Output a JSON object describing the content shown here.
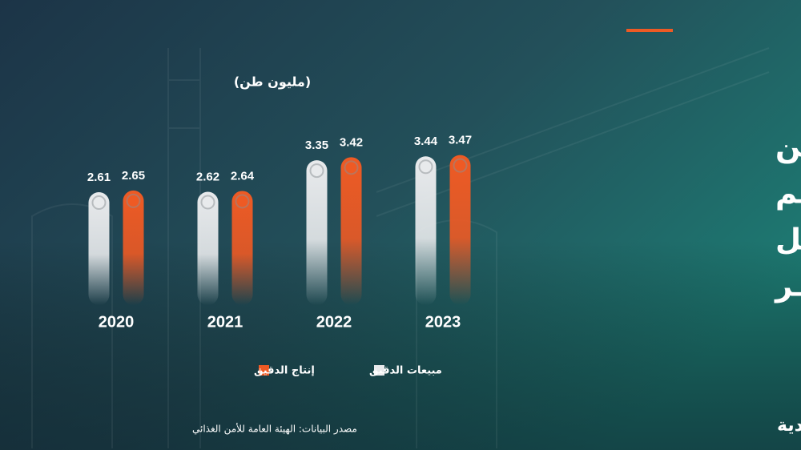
{
  "chart_data": {
    "type": "bar",
    "title": [
      "شركـــات المطاحن",
      "السعودية تبيع معظم",
      "إنتاجها من الدقيق قبل",
      "قـــرار فتـــح التصديـــر"
    ],
    "unit": "(مليون طن)",
    "categories": [
      "2020",
      "2021",
      "2022",
      "2023"
    ],
    "series": [
      {
        "name": "مبيعات الدقيق",
        "color": "#e8eaec",
        "values": [
          2.61,
          2.62,
          3.35,
          3.44
        ]
      },
      {
        "name": "إنتاج الدقيق",
        "color": "#ee5a24",
        "values": [
          2.65,
          2.64,
          3.42,
          3.47
        ]
      }
    ]
  },
  "source": "مصدر البيانات: الهيئة العامة للأمن الغذائي",
  "logo": "الاقتصادية"
}
